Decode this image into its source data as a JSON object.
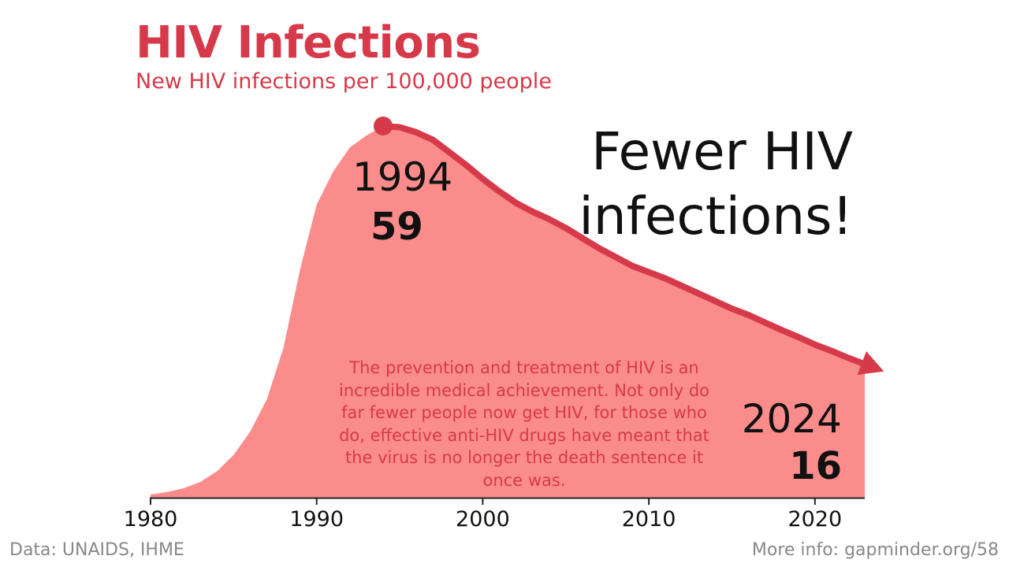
{
  "title": "HIV Infections",
  "subtitle": "New HIV infections per 100,000 people",
  "headline": [
    "Fewer HIV",
    "infections!"
  ],
  "peak": {
    "year": "1994",
    "value": "59"
  },
  "end": {
    "year": "2024",
    "value": "16"
  },
  "note": "The prevention and treatment of HIV is an incredible medical achievement. Not only do far fewer people now get HIV, for those who do, effective anti-HIV drugs have meant that the virus is no longer the death sentence it once was.",
  "source": "Data: UNAIDS, IHME",
  "more_info": "More info: gapminder.org/58",
  "colors": {
    "accent": "#d63a4a",
    "area": "#fb8c8c",
    "text": "#111111",
    "muted": "#888888"
  },
  "chart_data": {
    "type": "area",
    "title": "HIV Infections",
    "ylabel": "New HIV infections per 100,000 people",
    "xlim": [
      1980,
      2023
    ],
    "ylim": [
      0,
      59
    ],
    "xticks": [
      "1980",
      "1990",
      "2000",
      "2010",
      "2020"
    ],
    "x": [
      1980,
      1981,
      1982,
      1983,
      1984,
      1985,
      1986,
      1987,
      1988,
      1989,
      1990,
      1991,
      1992,
      1993,
      1994,
      1995,
      1996,
      1997,
      1998,
      1999,
      2000,
      2001,
      2002,
      2003,
      2004,
      2005,
      2006,
      2007,
      2008,
      2009,
      2010,
      2011,
      2012,
      2013,
      2014,
      2015,
      2016,
      2017,
      2018,
      2019,
      2020,
      2021,
      2022,
      2023
    ],
    "values": [
      0.5,
      0.9,
      1.5,
      2.5,
      4.2,
      6.8,
      10.5,
      15.6,
      23.8,
      36.2,
      46.5,
      51.8,
      55.6,
      57.5,
      59.0,
      58.8,
      58.0,
      56.8,
      54.8,
      52.8,
      50.6,
      48.6,
      46.8,
      45.4,
      44.2,
      42.8,
      41.2,
      39.6,
      38.2,
      36.8,
      35.8,
      34.8,
      33.6,
      32.4,
      31.2,
      30.0,
      29.0,
      27.8,
      26.6,
      25.5,
      24.3,
      23.3,
      22.2,
      21.2
    ],
    "line_start": 1994,
    "annotations": [
      {
        "x": 1994,
        "label_year": "1994",
        "label_value": "59"
      },
      {
        "x": 2024,
        "label_year": "2024",
        "label_value": "16"
      }
    ]
  }
}
